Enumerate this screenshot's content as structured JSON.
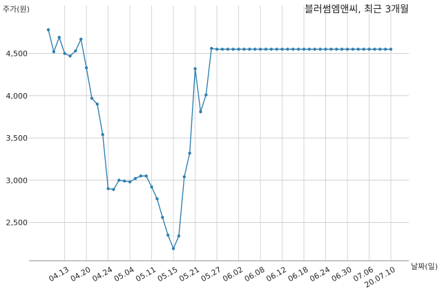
{
  "chart_data": {
    "type": "line",
    "title": "블러썸엠앤씨, 최근 3개월",
    "ylabel": "주가(원)",
    "xlabel": "날짜(일)",
    "ylim": [
      2100,
      4900
    ],
    "yticks": [
      2500,
      3000,
      3500,
      4000,
      4500
    ],
    "ytick_labels": [
      "2,500",
      "3,000",
      "3,500",
      "4,000",
      "4,500"
    ],
    "xtick_labels": [
      "04.13",
      "04.20",
      "04.24",
      "05.04",
      "05.11",
      "05.15",
      "05.21",
      "05.27",
      "06.02",
      "06.08",
      "06.12",
      "06.18",
      "06.24",
      "06.30",
      "07.06",
      "20.07.10"
    ],
    "xtick_index": [
      3,
      7,
      11,
      15,
      19,
      23,
      27,
      31,
      35,
      39,
      43,
      47,
      51,
      55,
      59,
      63
    ],
    "grid": true,
    "color": "#2f7fb0",
    "series": [
      {
        "values": [
          4780,
          4520,
          4690,
          4500,
          4470,
          4530,
          4670,
          4330,
          3970,
          3900,
          3540,
          2900,
          2890,
          3000,
          2990,
          2980,
          3020,
          3050,
          3050,
          2920,
          2780,
          2560,
          2350,
          2190,
          2340,
          3040,
          3320,
          4320,
          3810,
          4010,
          4560,
          4550,
          4550,
          4550,
          4550,
          4550,
          4550,
          4550,
          4550,
          4550,
          4550,
          4550,
          4550,
          4550,
          4550,
          4550,
          4550,
          4550,
          4550,
          4550,
          4550,
          4550,
          4550,
          4550,
          4550,
          4550,
          4550,
          4550,
          4550,
          4550,
          4550,
          4550,
          4550,
          4550
        ]
      }
    ]
  }
}
